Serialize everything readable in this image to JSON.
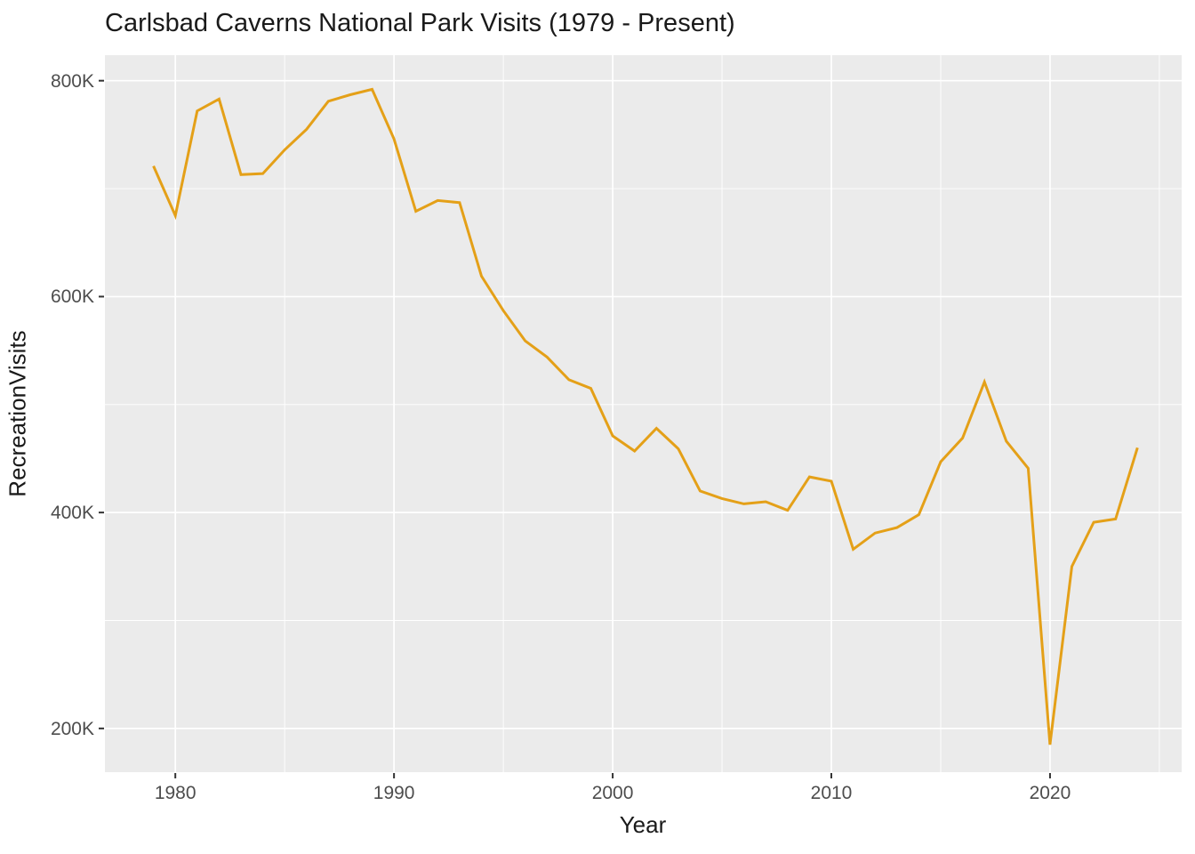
{
  "title": "Carlsbad Caverns National Park Visits (1979 - Present)",
  "chart_data": {
    "type": "line",
    "title": "Carlsbad Caverns National Park Visits (1979 - Present)",
    "xlabel": "Year",
    "ylabel": "RecreationVisits",
    "series_name": "RecreationVisits",
    "x": [
      1979,
      1980,
      1981,
      1982,
      1983,
      1984,
      1985,
      1986,
      1987,
      1988,
      1989,
      1990,
      1991,
      1992,
      1993,
      1994,
      1995,
      1996,
      1997,
      1998,
      1999,
      2000,
      2001,
      2002,
      2003,
      2004,
      2005,
      2006,
      2007,
      2008,
      2009,
      2010,
      2011,
      2012,
      2013,
      2014,
      2015,
      2016,
      2017,
      2018,
      2019,
      2020,
      2021,
      2022,
      2023,
      2024
    ],
    "values": [
      721000,
      675000,
      772000,
      783000,
      713000,
      714000,
      736000,
      755000,
      781000,
      787000,
      792000,
      746000,
      679000,
      689000,
      687000,
      619000,
      587000,
      559000,
      544000,
      523000,
      515000,
      471000,
      457000,
      478000,
      459000,
      420000,
      413000,
      408000,
      410000,
      402000,
      433000,
      429000,
      366000,
      381000,
      386000,
      398000,
      447000,
      469000,
      521000,
      466000,
      441000,
      185000,
      350000,
      391000,
      394000,
      460000
    ],
    "x_tick_labels": [
      "1980",
      "1990",
      "2000",
      "2010",
      "2020"
    ],
    "x_ticks_major": [
      1980,
      1990,
      2000,
      2010,
      2020
    ],
    "x_ticks_minor": [
      1985,
      1995,
      2005,
      2015,
      2025
    ],
    "y_tick_labels": [
      "800K",
      "600K",
      "400K",
      "200K"
    ],
    "y_ticks_major": [
      800000,
      600000,
      400000,
      200000
    ],
    "y_ticks_minor": [
      700000,
      500000,
      300000
    ],
    "x_domain": [
      1976.78,
      2026.02
    ],
    "y_domain": [
      159500,
      823650
    ],
    "grid": true,
    "legend": "none",
    "line_color": "#E4A018",
    "panel_bg": "#EBEBEB",
    "grid_color": "#FFFFFF",
    "tick_mark_color": "#333333",
    "tick_text_color": "#4D4D4D"
  }
}
